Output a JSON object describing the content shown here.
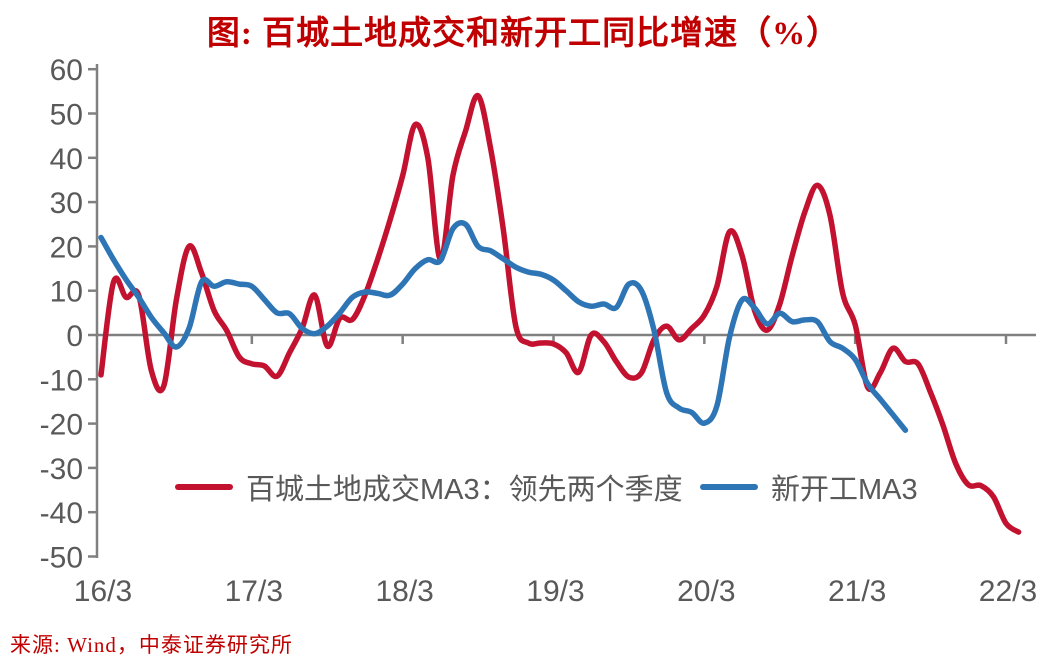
{
  "title": "图: 百城土地成交和新开工同比增速（%）",
  "footer": "来源: Wind，中泰证券研究所",
  "colors": {
    "title_text": "#c00000",
    "source_text": "#c00000",
    "axis": "#808080",
    "tick_label": "#595959",
    "legend_text": "#595959",
    "land_line": "#c31230",
    "starts_line": "#2e75b6"
  },
  "legend": [
    {
      "label": "百城土地成交MA3：领先两个季度",
      "series": "land"
    },
    {
      "label": "新开工MA3",
      "series": "starts"
    }
  ],
  "chart_data": {
    "type": "line",
    "title": "图: 百城土地成交和新开工同比增速（%）",
    "x_unit": "month",
    "x_tick_labels": [
      "16/3",
      "17/3",
      "18/3",
      "19/3",
      "20/3",
      "21/3",
      "22/3"
    ],
    "x_tick_month_offsets": [
      0,
      12,
      24,
      36,
      48,
      60,
      72
    ],
    "ylim": [
      -50,
      60
    ],
    "y_tick_step": 10,
    "y_tick_labels": [
      "60",
      "50",
      "40",
      "30",
      "20",
      "10",
      "0",
      "-10",
      "-20",
      "-30",
      "-40",
      "-50"
    ],
    "grid": "zero-baseline-only",
    "legend_position": "inside-bottom",
    "series": [
      {
        "name": "百城土地成交MA3：领先两个季度",
        "color": "#c31230",
        "start": "2016/03",
        "end": "2022/04",
        "start_month_offset": 0,
        "values": [
          -9,
          12,
          8.5,
          9,
          -8,
          -11.5,
          8,
          20,
          14,
          5.5,
          1,
          -5,
          -6.5,
          -7,
          -9.3,
          -4,
          1.5,
          9,
          -2.5,
          3.8,
          3.5,
          9,
          17,
          26,
          36,
          47.5,
          40,
          17,
          36,
          46,
          54,
          42,
          24,
          2,
          -1.8,
          -1.8,
          -2,
          -4,
          -8.4,
          0,
          -1.5,
          -6,
          -9.5,
          -8.5,
          -1,
          2,
          -1.1,
          1.5,
          4.5,
          11,
          23.3,
          18,
          5.5,
          1.1,
          7,
          18,
          27.8,
          33.8,
          27,
          9.5,
          2.3,
          -11.8,
          -8.5,
          -3,
          -6,
          -6.5,
          -13,
          -20.5,
          -29,
          -33.8,
          -34,
          -36.5,
          -42.5,
          -44.5
        ]
      },
      {
        "name": "新开工MA3",
        "color": "#2e75b6",
        "start": "2016/03",
        "end": "2021/07",
        "start_month_offset": 0,
        "values": [
          22,
          17,
          12.5,
          8.5,
          4,
          0.5,
          -2.7,
          1.5,
          12,
          11,
          12,
          11.5,
          11,
          8,
          5,
          4.8,
          1.5,
          0.3,
          2,
          5,
          8.5,
          9.7,
          9.4,
          9,
          11.5,
          15,
          17,
          16.8,
          24,
          25,
          20,
          19,
          17.2,
          15.3,
          14.2,
          13.7,
          12.4,
          10,
          7.5,
          6.5,
          7,
          6.2,
          11.5,
          10,
          1,
          -13,
          -16.5,
          -17.5,
          -19.9,
          -16,
          -0.5,
          7.9,
          6.1,
          2.5,
          4.9,
          3,
          3.4,
          3,
          -1.5,
          -3,
          -5.5,
          -11,
          -14.5,
          -18,
          -21.5
        ]
      }
    ]
  }
}
